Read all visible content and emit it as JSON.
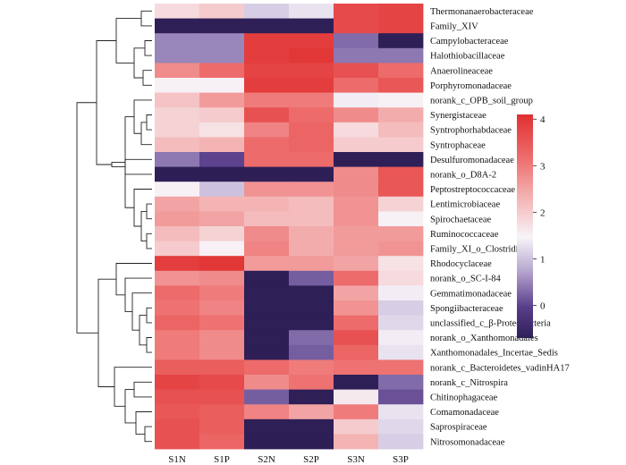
{
  "colors": {
    "low": "#2e1f57",
    "mid": "#f7f4f9",
    "high": "#e03030"
  },
  "chart_data": {
    "type": "heatmap",
    "columns": [
      "S1N",
      "S1P",
      "S2N",
      "S2P",
      "S3N",
      "S3P"
    ],
    "rows": [
      "Thermonanaerobacteraceae",
      "Family_XIV",
      "Campylobacteraceae",
      "Halothiobacillaceae",
      "Anaerolineaceae",
      "Porphyromonadaceae",
      "norank_c_OPB_soil_group",
      "Synergistaceae",
      "Syntrophorhabdaceae",
      "Syntrophaceae",
      "Desulfuromonadaceae",
      "norank_o_D8A-2",
      "Peptostreptococcaceae",
      "Lentimicrobiaceae",
      "Spirochaetaceae",
      "Ruminococcaceae",
      "Family_XI_o_Clostridiales",
      "Rhodocyclaceae",
      "norank_o_SC-I-84",
      "Gemmatimonadaceae",
      "Spongiibacteraceae",
      "unclassified_c_β-Proteobacteria",
      "norank_o_Xanthomonadales",
      "Xanthomonadales_Incertae_Sedis",
      "norank_c_Bacteroidetes_vadinHA17",
      "norank_c_Nitrospira",
      "Chitinophagaceae",
      "Comamonadaceae",
      "Saprospiraceae",
      "Nitrosomonadaceae"
    ],
    "values": [
      [
        1.8,
        2.0,
        1.1,
        1.3,
        3.7,
        3.8
      ],
      [
        -0.7,
        -0.7,
        -0.7,
        -0.7,
        3.7,
        3.8
      ],
      [
        0.5,
        0.5,
        3.9,
        3.9,
        0.3,
        -0.7
      ],
      [
        0.5,
        0.5,
        3.9,
        4.0,
        0.4,
        0.4
      ],
      [
        2.8,
        3.2,
        3.8,
        3.8,
        3.6,
        3.2
      ],
      [
        1.5,
        1.5,
        3.9,
        3.9,
        3.2,
        3.5
      ],
      [
        2.1,
        2.6,
        3.0,
        3.0,
        1.4,
        1.5
      ],
      [
        1.9,
        2.0,
        3.6,
        3.2,
        2.8,
        2.4
      ],
      [
        1.9,
        1.7,
        2.9,
        3.3,
        1.8,
        2.2
      ],
      [
        2.2,
        2.3,
        3.2,
        3.3,
        2.0,
        2.0
      ],
      [
        0.4,
        0.0,
        3.2,
        3.2,
        -0.7,
        -0.7
      ],
      [
        -0.7,
        -0.7,
        -0.7,
        -0.7,
        2.8,
        3.5
      ],
      [
        1.5,
        1.0,
        2.7,
        2.7,
        2.8,
        3.5
      ],
      [
        2.5,
        2.3,
        2.3,
        2.2,
        2.7,
        1.9
      ],
      [
        2.6,
        2.5,
        2.2,
        2.2,
        2.7,
        1.5
      ],
      [
        2.2,
        1.9,
        2.8,
        2.4,
        2.6,
        2.6
      ],
      [
        2.0,
        1.5,
        2.9,
        2.4,
        2.6,
        2.7
      ],
      [
        3.9,
        4.0,
        2.6,
        2.6,
        2.5,
        1.7
      ],
      [
        2.7,
        2.8,
        -0.7,
        0.2,
        3.2,
        1.8
      ],
      [
        3.2,
        3.0,
        -0.7,
        -0.7,
        2.5,
        1.4
      ],
      [
        3.1,
        2.9,
        -0.7,
        -0.7,
        2.7,
        1.1
      ],
      [
        3.3,
        3.1,
        -0.7,
        -0.7,
        3.2,
        1.2
      ],
      [
        3.0,
        2.8,
        -0.7,
        0.3,
        3.6,
        1.4
      ],
      [
        3.0,
        2.8,
        -0.7,
        0.2,
        3.3,
        1.3
      ],
      [
        3.4,
        3.4,
        3.2,
        3.0,
        3.1,
        3.1
      ],
      [
        3.8,
        3.7,
        2.8,
        3.1,
        -0.7,
        0.3
      ],
      [
        3.6,
        3.6,
        0.2,
        -0.7,
        1.6,
        0.1
      ],
      [
        3.5,
        3.4,
        2.9,
        2.5,
        3.0,
        1.3
      ],
      [
        3.6,
        3.4,
        -0.7,
        -0.7,
        2.0,
        1.2
      ],
      [
        3.6,
        3.3,
        -0.7,
        -0.7,
        2.3,
        1.1
      ]
    ],
    "colorbar": {
      "range": [
        -0.7,
        4.1
      ],
      "ticks": [
        0,
        1,
        2,
        3,
        4
      ]
    }
  }
}
